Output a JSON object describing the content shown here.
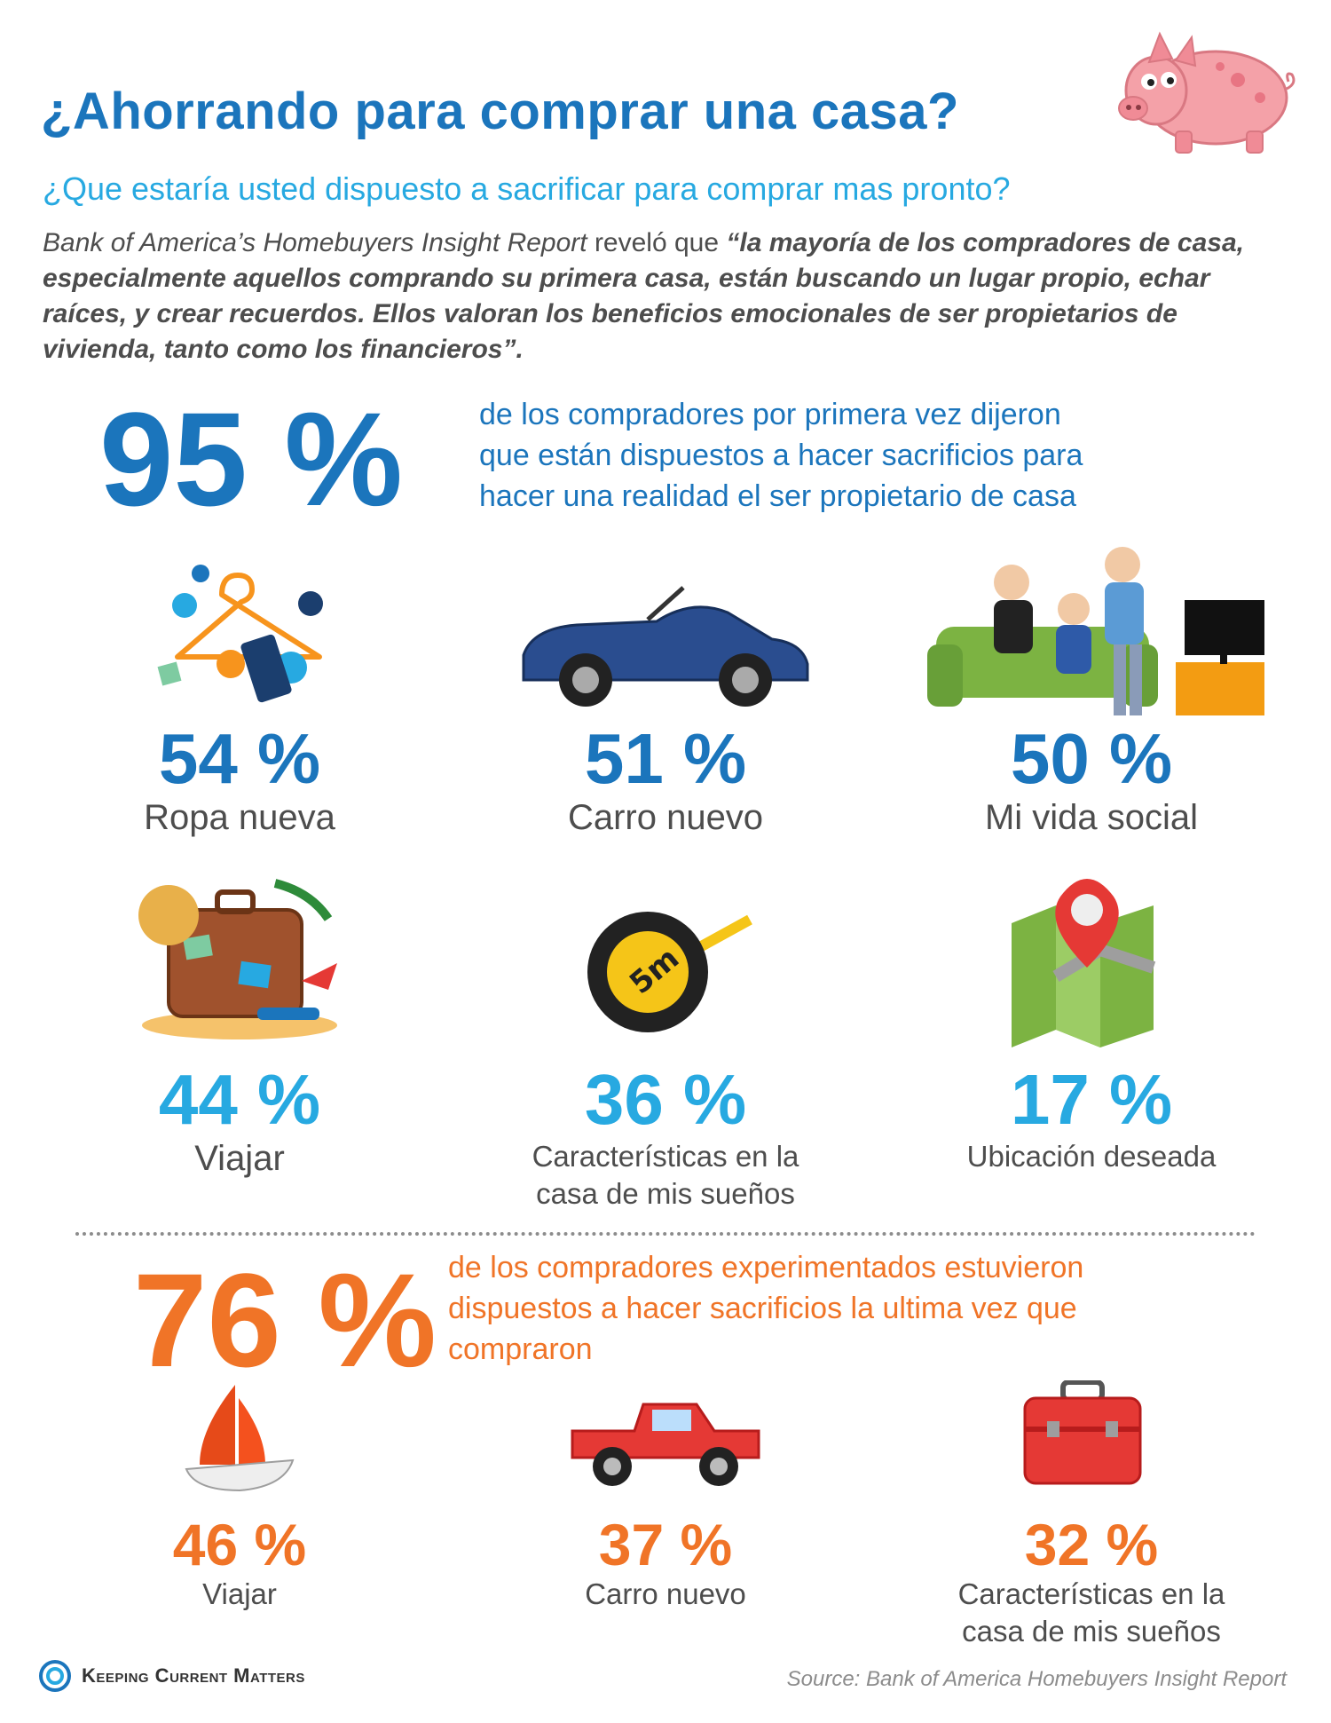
{
  "header": {
    "title": "¿Ahorrando para comprar una casa?",
    "subtitle": "¿Que estaría usted dispuesto a sacrificar para comprar mas pronto?"
  },
  "intro": {
    "source_name": "Bank of America’s Homebuyers Insight Report",
    "revealed": " reveló que ",
    "quote_part1": "“la mayoría de los compradores de casa, especialmente aquellos comprando su primera casa, están buscando un lugar propio, echar raíces, y crear recuerdos. ",
    "quote_part2": "Ellos valoran los beneficios emocionales de ser propietarios de vivienda, tanto como los financieros”."
  },
  "first_time": {
    "stat": "95 %",
    "desc_line1": "de los compradores por primera vez dijeron",
    "desc_line2": "que están dispuestos a hacer sacrificios para",
    "desc_line3": "hacer una realidad el ser propietario de casa",
    "color": "#1b75bc",
    "items": [
      {
        "pct": "54 %",
        "label": "Ropa nueva",
        "icon": "clothes-hanger-sale-icon"
      },
      {
        "pct": "51 %",
        "label": "Carro nuevo",
        "icon": "convertible-car-icon"
      },
      {
        "pct": "50 %",
        "label": "Mi vida social",
        "icon": "friends-watching-tv-icon"
      },
      {
        "pct": "44 %",
        "label": "Viajar",
        "icon": "suitcase-travel-icon"
      },
      {
        "pct": "36 %",
        "label_line1": "Características en la",
        "label_line2": "casa de mis sueños",
        "icon": "tape-measure-icon"
      },
      {
        "pct": "17 %",
        "label": "Ubicación deseada",
        "icon": "map-pin-icon"
      }
    ]
  },
  "experienced": {
    "stat": "76 %",
    "desc_line1": "de los compradores experimentados estuvieron",
    "desc_line2": "dispuestos a hacer sacrificios la ultima vez que",
    "desc_line3": "compraron",
    "color": "#f07427",
    "items": [
      {
        "pct": "46 %",
        "label": "Viajar",
        "icon": "sailboat-icon"
      },
      {
        "pct": "37 %",
        "label": "Carro nuevo",
        "icon": "pickup-truck-icon"
      },
      {
        "pct": "32 %",
        "label_line1": "Características en la",
        "label_line2": "casa de mis sueños",
        "icon": "toolbox-icon"
      }
    ]
  },
  "footer": {
    "logo_text": "Keeping Current Matters",
    "source": "Source: Bank of America Homebuyers Insight Report"
  }
}
